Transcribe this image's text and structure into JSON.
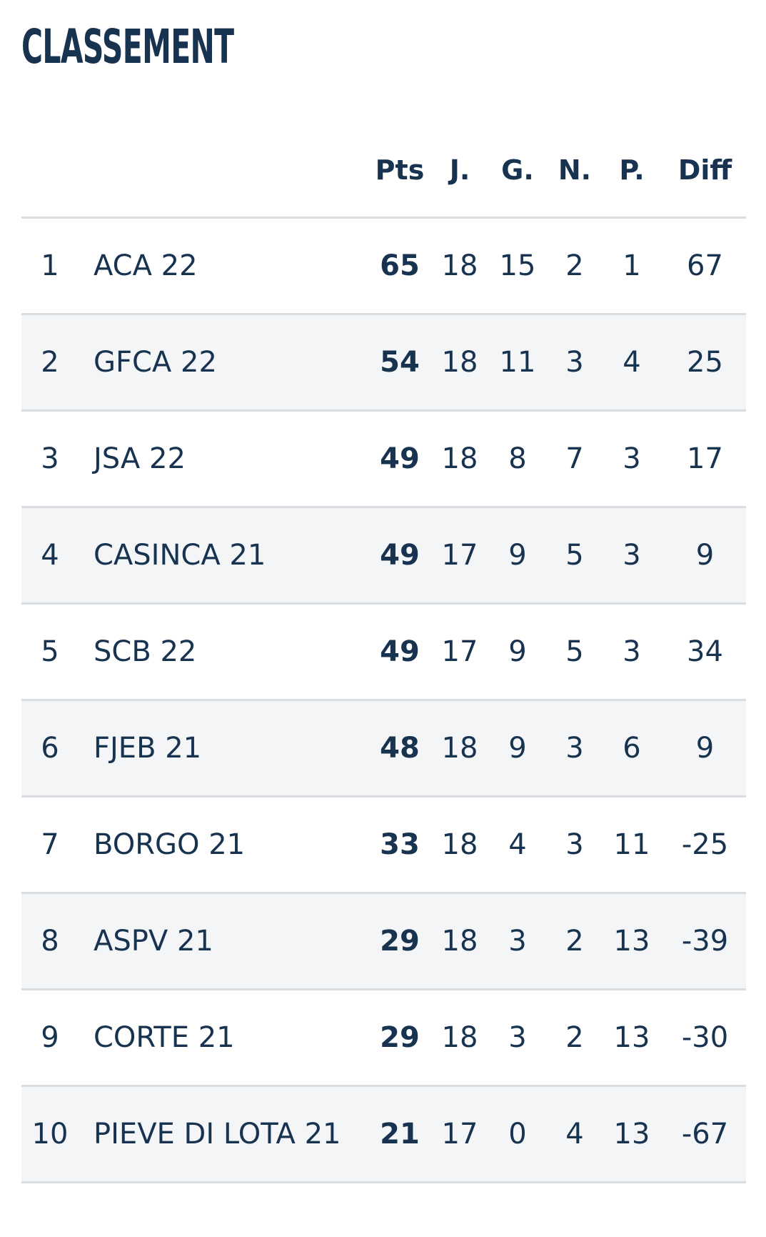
{
  "title": "CLASSEMENT",
  "columns": {
    "pts": "Pts",
    "j": "J.",
    "g": "G.",
    "n": "N.",
    "p": "P.",
    "diff": "Diff"
  },
  "rows": [
    {
      "rank": "1",
      "team": "ACA 22",
      "pts": "65",
      "j": "18",
      "g": "15",
      "n": "2",
      "p": "1",
      "diff": "67"
    },
    {
      "rank": "2",
      "team": "GFCA 22",
      "pts": "54",
      "j": "18",
      "g": "11",
      "n": "3",
      "p": "4",
      "diff": "25"
    },
    {
      "rank": "3",
      "team": "JSA 22",
      "pts": "49",
      "j": "18",
      "g": "8",
      "n": "7",
      "p": "3",
      "diff": "17"
    },
    {
      "rank": "4",
      "team": "CASINCA 21",
      "pts": "49",
      "j": "17",
      "g": "9",
      "n": "5",
      "p": "3",
      "diff": "9"
    },
    {
      "rank": "5",
      "team": "SCB 22",
      "pts": "49",
      "j": "17",
      "g": "9",
      "n": "5",
      "p": "3",
      "diff": "34"
    },
    {
      "rank": "6",
      "team": "FJEB 21",
      "pts": "48",
      "j": "18",
      "g": "9",
      "n": "3",
      "p": "6",
      "diff": "9"
    },
    {
      "rank": "7",
      "team": "BORGO 21",
      "pts": "33",
      "j": "18",
      "g": "4",
      "n": "3",
      "p": "11",
      "diff": "-25"
    },
    {
      "rank": "8",
      "team": "ASPV 21",
      "pts": "29",
      "j": "18",
      "g": "3",
      "n": "2",
      "p": "13",
      "diff": "-39"
    },
    {
      "rank": "9",
      "team": "CORTE 21",
      "pts": "29",
      "j": "18",
      "g": "3",
      "n": "2",
      "p": "13",
      "diff": "-30"
    },
    {
      "rank": "10",
      "team": "PIEVE DI LOTA 21",
      "pts": "21",
      "j": "17",
      "g": "0",
      "n": "4",
      "p": "13",
      "diff": "-67"
    }
  ]
}
